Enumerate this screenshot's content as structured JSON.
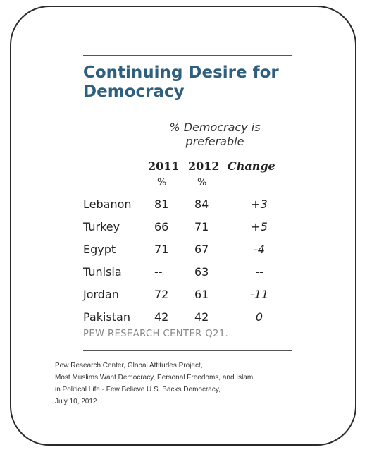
{
  "chart_data": {
    "type": "table",
    "title": "Continuing Desire for Democracy",
    "subtitle": "% Democracy is preferable",
    "columns": [
      {
        "label": "2011",
        "unit": "%"
      },
      {
        "label": "2012",
        "unit": "%"
      },
      {
        "label": "Change",
        "unit": ""
      }
    ],
    "rows": [
      {
        "country": "Lebanon",
        "y2011": "81",
        "y2012": "84",
        "change": "+3"
      },
      {
        "country": "Turkey",
        "y2011": "66",
        "y2012": "71",
        "change": "+5"
      },
      {
        "country": "Egypt",
        "y2011": "71",
        "y2012": "67",
        "change": "-4"
      },
      {
        "country": "Tunisia",
        "y2011": "--",
        "y2012": "63",
        "change": "--"
      },
      {
        "country": "Jordan",
        "y2011": "72",
        "y2012": "61",
        "change": "-11"
      },
      {
        "country": "Pakistan",
        "y2011": "42",
        "y2012": "42",
        "change": "0"
      }
    ],
    "source_note": "PEW RESEARCH CENTER Q21."
  },
  "citation": {
    "line1": "Pew Research Center, Global Attitudes Project,",
    "line2": "Most Muslims Want Democracy, Personal Freedoms, and Islam",
    "line3": "in Political Life - Few Believe U.S. Backs Democracy,",
    "line4": "July 10, 2012"
  },
  "colors": {
    "title": "#2f5f7f",
    "rule": "#555555",
    "source": "#888888",
    "frame": "#2a2a2a"
  }
}
